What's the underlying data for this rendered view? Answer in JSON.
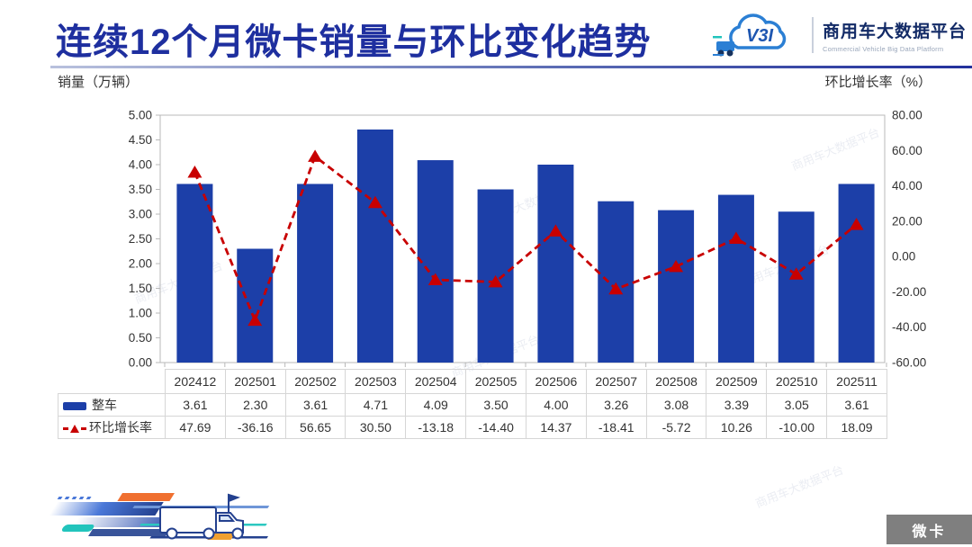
{
  "header": {
    "title": "连续12个月微卡销量与环比变化趋势",
    "brand": {
      "logo_mark": "V3I",
      "name_cn": "商用车大数据平台",
      "name_en": "Commercial Vehicle Big Data Platform"
    }
  },
  "axis_titles": {
    "left": "销量（万辆）",
    "right": "环比增长率（%）"
  },
  "chart_data": {
    "type": "combo-bar-line",
    "categories": [
      "202412",
      "202501",
      "202502",
      "202503",
      "202504",
      "202505",
      "202506",
      "202507",
      "202508",
      "202509",
      "202510",
      "202511"
    ],
    "series": [
      {
        "name": "整车",
        "type": "bar",
        "axis": "left",
        "color": "#1c3fa8",
        "values": [
          3.61,
          2.3,
          3.61,
          4.71,
          4.09,
          3.5,
          4.0,
          3.26,
          3.08,
          3.39,
          3.05,
          3.61
        ]
      },
      {
        "name": "环比增长率",
        "type": "line",
        "style": "dashed",
        "marker": "triangle",
        "axis": "right",
        "color": "#c80000",
        "values": [
          47.69,
          -36.16,
          56.65,
          30.5,
          -13.18,
          -14.4,
          14.37,
          -18.41,
          -5.72,
          10.26,
          -10.0,
          18.09
        ]
      }
    ],
    "left_axis": {
      "min": 0,
      "max": 5,
      "step": 0.5
    },
    "right_axis": {
      "min": -60,
      "max": 80,
      "step": 20
    },
    "grid": false,
    "legend_position": "table-left",
    "value_format": "2-decimals"
  },
  "watermark": {
    "text": "商用车大数据平台"
  },
  "footer": {
    "badge_label": "微卡"
  },
  "colors": {
    "title": "#1e2f9f",
    "bar": "#1c3fa8",
    "line": "#c80000",
    "table_border": "#d6d6d6",
    "text": "#333333",
    "badge_bg": "#7f7f7f",
    "badge_text": "#ffffff"
  }
}
